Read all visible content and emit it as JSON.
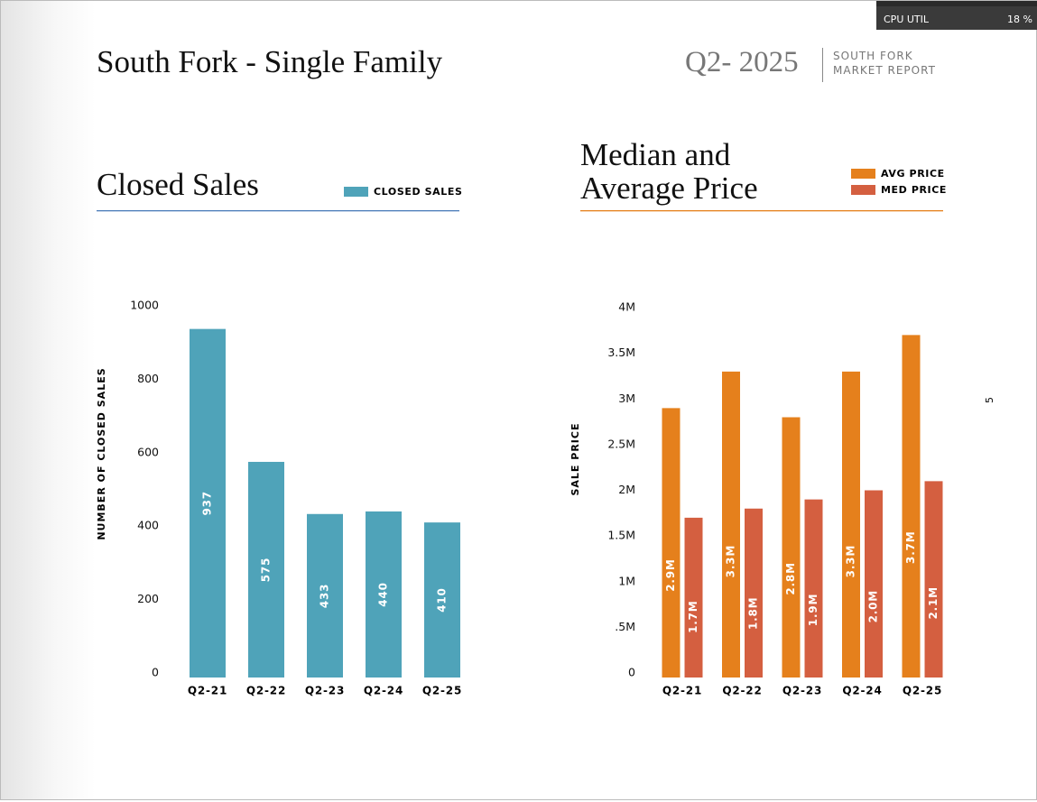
{
  "header": {
    "title": "South Fork - Single Family",
    "period": "Q2- 2025",
    "report_line1": "SOUTH FORK",
    "report_line2": "MARKET REPORT",
    "page_number": "5"
  },
  "overlay": {
    "label": "CPU UTIL",
    "value": "18 %"
  },
  "chart_data": [
    {
      "type": "bar",
      "title": "Closed Sales",
      "y_label": "NUMBER OF CLOSED SALES",
      "categories": [
        "Q2-21",
        "Q2-22",
        "Q2-23",
        "Q2-24",
        "Q2-25"
      ],
      "series": [
        {
          "name": "CLOSED SALES",
          "color": "#4fa3b9",
          "values": [
            937,
            575,
            433,
            440,
            410
          ]
        }
      ],
      "ylim": [
        0,
        1000
      ],
      "yticks": [
        0,
        200,
        400,
        600,
        800,
        1000
      ],
      "grid": false,
      "underline_color": "#4a7bb8"
    },
    {
      "type": "bar",
      "title": "Median and Average Price",
      "y_label": "SALE PRICE",
      "categories": [
        "Q2-21",
        "Q2-22",
        "Q2-23",
        "Q2-24",
        "Q2-25"
      ],
      "series": [
        {
          "name": "AVG PRICE",
          "color": "#e5801c",
          "values": [
            2900000,
            3300000,
            2800000,
            3300000,
            3700000
          ],
          "value_labels": [
            "2.9M",
            "3.3M",
            "2.8M",
            "3.3M",
            "3.7M"
          ]
        },
        {
          "name": "MED PRICE",
          "color": "#d45f40",
          "values": [
            1700000,
            1800000,
            1900000,
            2000000,
            2100000
          ],
          "value_labels": [
            "1.7M",
            "1.8M",
            "1.9M",
            "2.0M",
            "2.1M"
          ]
        }
      ],
      "ylim": [
        0,
        4000000
      ],
      "yticks": [
        0,
        {
          "value": 500000,
          "label": ".5M"
        },
        {
          "value": 1000000,
          "label": "1M"
        },
        {
          "value": 1500000,
          "label": "1.5M"
        },
        {
          "value": 2000000,
          "label": "2M"
        },
        {
          "value": 2500000,
          "label": "2.5M"
        },
        {
          "value": 3000000,
          "label": "3M"
        },
        {
          "value": 3500000,
          "label": "3.5M"
        },
        {
          "value": 4000000,
          "label": "4M"
        }
      ],
      "grid": false,
      "underline_color": "#e5801c"
    }
  ]
}
